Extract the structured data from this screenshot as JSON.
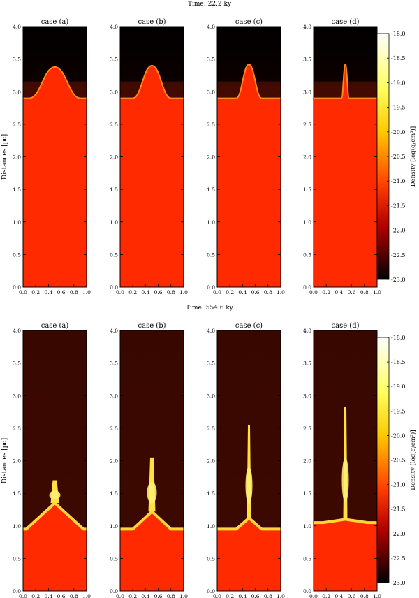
{
  "chart_data": {
    "type": "heatmap",
    "colormap": "hot",
    "colorbar": {
      "label": "Density [log(g/cm³)]",
      "range": [
        -23.0,
        -18.0
      ],
      "ticks": [
        "-18.0",
        "-18.5",
        "-19.0",
        "-19.5",
        "-20.0",
        "-20.5",
        "-21.0",
        "-21.5",
        "-22.0",
        "-22.5",
        "-23.0"
      ]
    },
    "ylabel": "Distances [pc]",
    "xlim": [
      0.0,
      1.0
    ],
    "ylim": [
      0.0,
      4.0
    ],
    "xticks": [
      "0.0",
      "0.2",
      "0.4",
      "0.6",
      "0.8",
      "1.0"
    ],
    "yticks": [
      "0.0",
      "0.5",
      "1.0",
      "1.5",
      "2.0",
      "2.5",
      "3.0",
      "3.5",
      "4.0"
    ],
    "panels": [
      {
        "time_label": "Time: 22.2 ky",
        "cases": [
          {
            "title": "case (a)",
            "front_base_pc": 2.9,
            "peak_x": 0.5,
            "peak_y_pc": 3.38,
            "half_width": 0.4
          },
          {
            "title": "case (b)",
            "front_base_pc": 2.9,
            "peak_x": 0.5,
            "peak_y_pc": 3.4,
            "half_width": 0.3
          },
          {
            "title": "case (c)",
            "front_base_pc": 2.9,
            "peak_x": 0.5,
            "peak_y_pc": 3.42,
            "half_width": 0.2
          },
          {
            "title": "case (d)",
            "front_base_pc": 2.9,
            "peak_x": 0.5,
            "peak_y_pc": 3.42,
            "half_width": 0.06
          }
        ]
      },
      {
        "time_label": "Time: 554.6 ky",
        "cases": [
          {
            "title": "case (a)",
            "front_base_pc": 0.95,
            "peak_x": 0.5,
            "peak_y_pc": 1.35,
            "half_width": 0.45,
            "jet_top_pc": 1.7
          },
          {
            "title": "case (b)",
            "front_base_pc": 0.95,
            "peak_x": 0.5,
            "peak_y_pc": 1.22,
            "half_width": 0.3,
            "jet_top_pc": 2.05
          },
          {
            "title": "case (c)",
            "front_base_pc": 0.95,
            "peak_x": 0.5,
            "peak_y_pc": 1.12,
            "half_width": 0.2,
            "jet_top_pc": 2.55
          },
          {
            "title": "case (d)",
            "front_base_pc": 1.05,
            "peak_x": 0.5,
            "peak_y_pc": 1.1,
            "half_width": 0.35,
            "jet_top_pc": 2.82
          }
        ]
      }
    ]
  }
}
